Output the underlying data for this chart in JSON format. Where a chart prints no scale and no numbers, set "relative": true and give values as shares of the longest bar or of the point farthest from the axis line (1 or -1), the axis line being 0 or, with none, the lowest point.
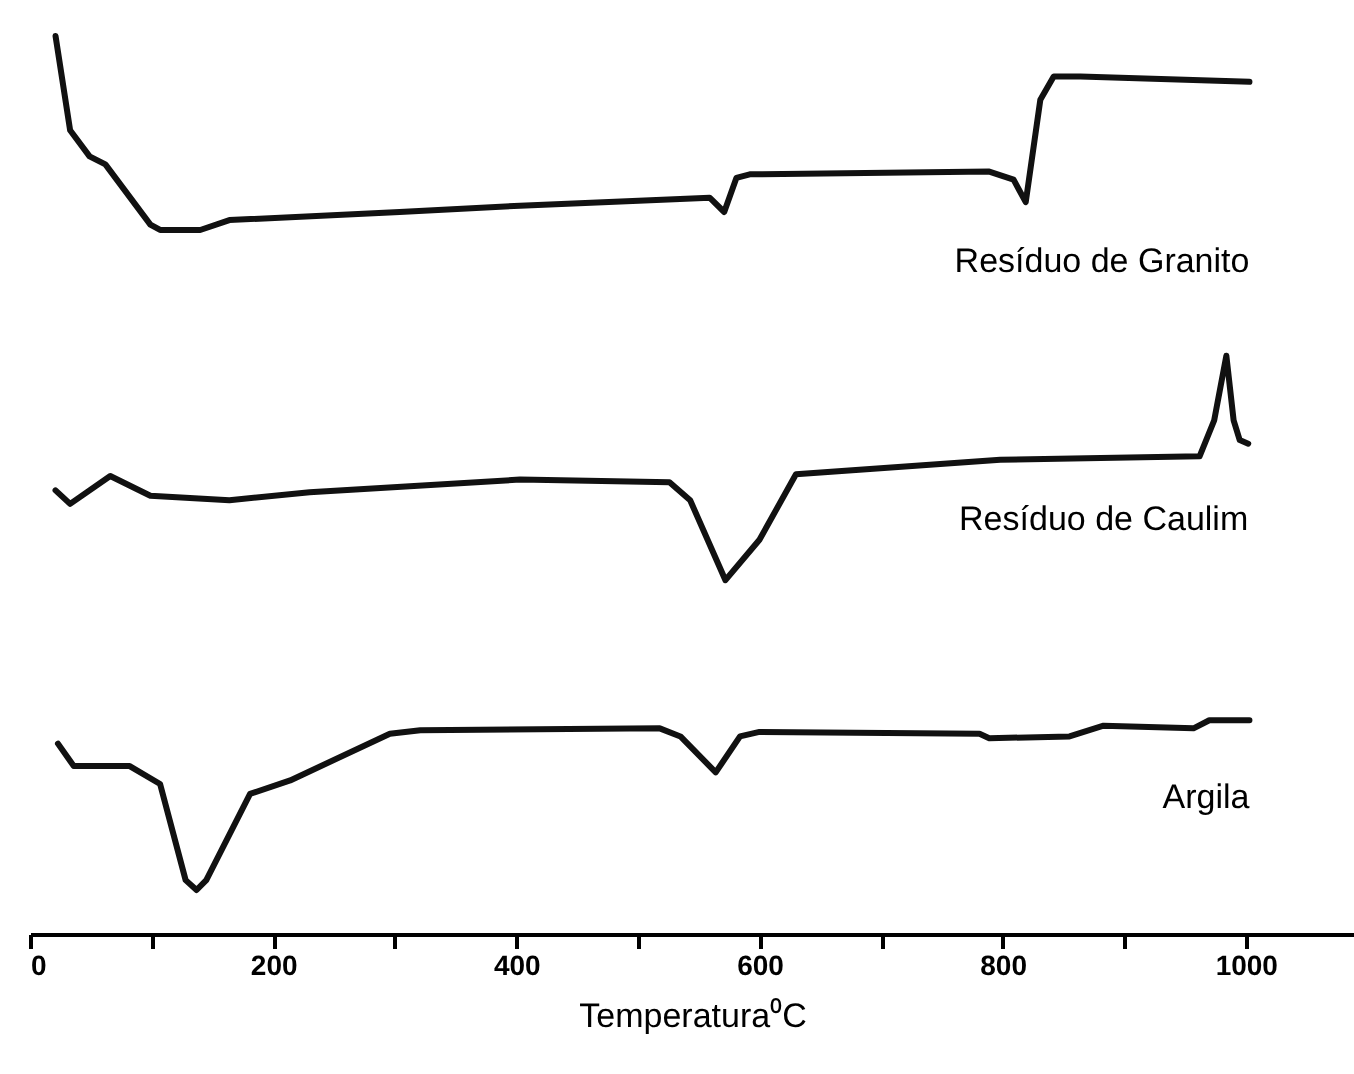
{
  "chart_data": {
    "type": "line",
    "relative": true,
    "xlabel": "Temperatura⁰C",
    "xlim": [
      0,
      1089
    ],
    "xticks": [
      0,
      {
        "value": 100,
        "label": null
      },
      200,
      {
        "value": 300,
        "label": null
      },
      400,
      {
        "value": 500,
        "label": null
      },
      600,
      {
        "value": 700,
        "label": null
      },
      800,
      {
        "value": 900,
        "label": null
      },
      1000
    ],
    "grid": false,
    "legend": false,
    "marker": "none",
    "line_style": "solid",
    "series": [
      {
        "name": "Resíduo de Granito",
        "color": "#111111",
        "x": [
          21,
          33,
          49,
          62,
          99,
          107,
          140,
          164,
          304,
          403,
          559,
          571,
          581,
          592,
          789,
          809,
          819,
          831,
          842,
          864,
          1003
        ],
        "values": [
          1.0,
          0.895,
          0.866,
          0.857,
          0.79,
          0.784,
          0.784,
          0.795,
          0.804,
          0.811,
          0.82,
          0.804,
          0.842,
          0.846,
          0.849,
          0.84,
          0.815,
          0.929,
          0.955,
          0.955,
          0.949
        ]
      },
      {
        "name": "Resíduo de Caulim",
        "color": "#111111",
        "x": [
          21,
          33,
          66,
          99,
          164,
          230,
          403,
          526,
          543,
          572,
          600,
          630,
          798,
          962,
          974,
          984,
          990,
          995,
          1002
        ],
        "values": [
          0.494,
          0.479,
          0.51,
          0.488,
          0.483,
          0.492,
          0.506,
          0.503,
          0.483,
          0.394,
          0.439,
          0.512,
          0.528,
          0.532,
          0.572,
          0.644,
          0.572,
          0.55,
          0.546
        ]
      },
      {
        "name": "Argila",
        "color": "#111111",
        "x": [
          23,
          36,
          82,
          107,
          128,
          137,
          145,
          181,
          214,
          296,
          321,
          518,
          535,
          564,
          584,
          600,
          781,
          789,
          855,
          883,
          957,
          970,
          1003
        ],
        "values": [
          0.212,
          0.187,
          0.187,
          0.167,
          0.06,
          0.049,
          0.06,
          0.156,
          0.171,
          0.223,
          0.227,
          0.229,
          0.22,
          0.18,
          0.22,
          0.225,
          0.223,
          0.218,
          0.22,
          0.232,
          0.229,
          0.238,
          0.238
        ]
      }
    ]
  }
}
